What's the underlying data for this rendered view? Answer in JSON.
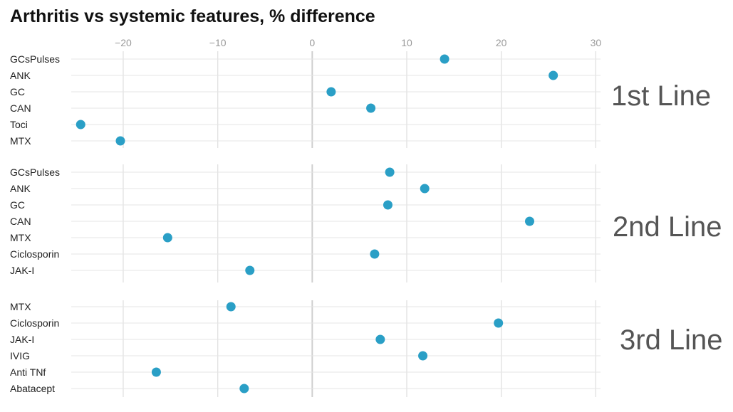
{
  "chart_data": {
    "type": "scatter",
    "title": "Arthritis vs systemic features, % difference",
    "x_ticks": [
      -20,
      -10,
      0,
      10,
      20,
      30
    ],
    "x_tick_labels": [
      "−20",
      "−10",
      "0",
      "10",
      "20",
      "30"
    ],
    "xlim": [
      -25.5,
      30.5
    ],
    "grid": true,
    "point_color": "#2a9fc6",
    "panels": [
      {
        "label": "1st Line",
        "categories": [
          "GCsPulses",
          "ANK",
          "GC",
          "CAN",
          "Toci",
          "MTX"
        ],
        "values": [
          14,
          25.5,
          2,
          6.2,
          -24.5,
          -20.3
        ]
      },
      {
        "label": "2nd Line",
        "categories": [
          "GCsPulses",
          "ANK",
          "GC",
          "CAN",
          "MTX",
          "Ciclosporin",
          "JAK-I"
        ],
        "values": [
          8.2,
          11.9,
          8,
          23,
          -15.3,
          6.6,
          -6.6
        ]
      },
      {
        "label": "3rd Line",
        "categories": [
          "MTX",
          "Ciclosporin",
          "JAK-I",
          "IVIG",
          "Anti TNf",
          "Abatacept"
        ],
        "values": [
          -8.6,
          19.7,
          7.2,
          11.7,
          -16.5,
          -7.2
        ]
      }
    ]
  }
}
